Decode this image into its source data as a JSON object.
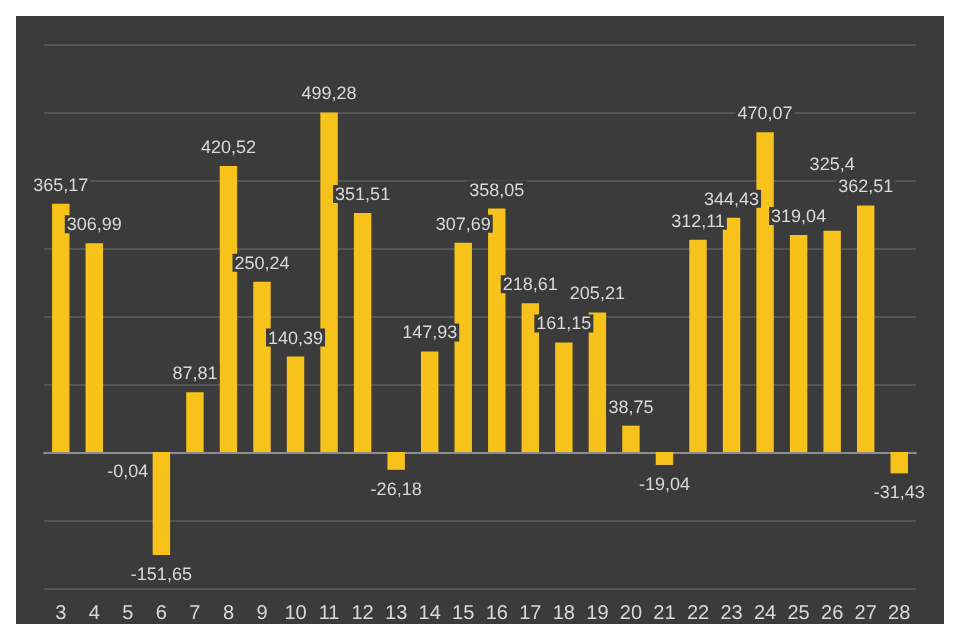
{
  "chart_data": {
    "type": "bar",
    "categories": [
      "3",
      "4",
      "5",
      "6",
      "7",
      "8",
      "9",
      "10",
      "11",
      "12",
      "13",
      "14",
      "15",
      "16",
      "17",
      "18",
      "19",
      "20",
      "21",
      "22",
      "23",
      "24",
      "25",
      "26",
      "27",
      "28"
    ],
    "values": [
      365.17,
      306.99,
      -0.04,
      -151.65,
      87.81,
      420.52,
      250.24,
      140.39,
      499.28,
      351.51,
      -26.18,
      147.93,
      307.69,
      358.05,
      218.61,
      161.15,
      205.21,
      38.75,
      -19.04,
      312.11,
      344.43,
      470.07,
      319.04,
      325.4,
      362.51,
      -31.43
    ],
    "value_labels": [
      "365,17",
      "306,99",
      "-0,04",
      "-151,65",
      "87,81",
      "420,52",
      "250,24",
      "140,39",
      "499,28",
      "351,51",
      "-26,18",
      "147,93",
      "307,69",
      "358,05",
      "218,61",
      "161,15",
      "205,21",
      "38,75",
      "-19,04",
      "312,11",
      "344,43",
      "470,07",
      "319,04",
      "325,4",
      "362,51",
      "-31,43"
    ],
    "color": "#f7c21a",
    "ylim": [
      -200,
      600
    ],
    "yticks": [
      {
        "value": -200,
        "label": null
      },
      {
        "value": -100,
        "label": null
      },
      {
        "value": 0,
        "label": null
      },
      {
        "value": 100,
        "label": null
      },
      {
        "value": 200,
        "label": null
      },
      {
        "value": 300,
        "label": null
      },
      {
        "value": 400,
        "label": null
      },
      {
        "value": 500,
        "label": null
      },
      {
        "value": 600,
        "label": null
      }
    ],
    "tick_labels": "x",
    "grid": "y"
  }
}
